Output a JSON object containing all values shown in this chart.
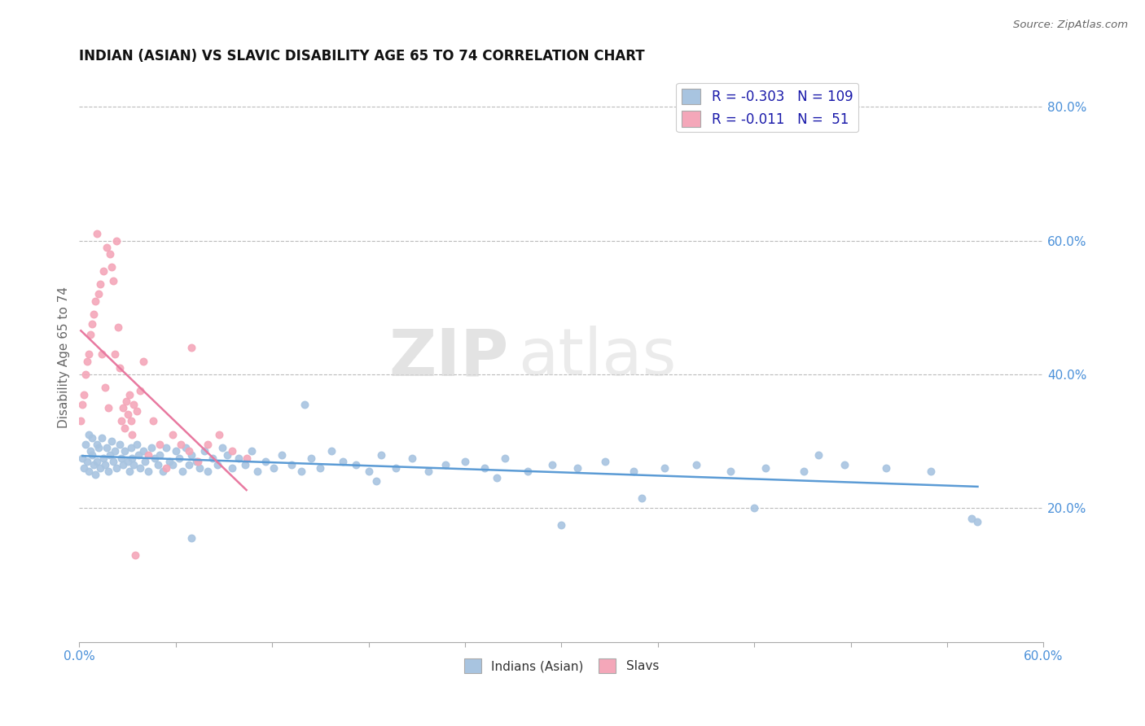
{
  "title": "INDIAN (ASIAN) VS SLAVIC DISABILITY AGE 65 TO 74 CORRELATION CHART",
  "source": "Source: ZipAtlas.com",
  "ylabel": "Disability Age 65 to 74",
  "xlim": [
    0.0,
    0.6
  ],
  "ylim": [
    0.0,
    0.85
  ],
  "xticks": [
    0.0,
    0.06,
    0.12,
    0.18,
    0.24,
    0.3,
    0.36,
    0.42,
    0.48,
    0.54,
    0.6
  ],
  "xticklabels": [
    "0.0%",
    "",
    "",
    "",
    "",
    "",
    "",
    "",
    "",
    "",
    "60.0%"
  ],
  "yticks_right": [
    0.2,
    0.4,
    0.6,
    0.8
  ],
  "ytick_right_labels": [
    "20.0%",
    "40.0%",
    "60.0%",
    "80.0%"
  ],
  "blue_color": "#a8c4e0",
  "pink_color": "#f4a7b9",
  "blue_line_color": "#5b9bd5",
  "pink_line_color": "#e879a0",
  "watermark_zip": "ZIP",
  "watermark_atlas": "atlas",
  "blue_x": [
    0.002,
    0.003,
    0.004,
    0.005,
    0.006,
    0.006,
    0.007,
    0.008,
    0.008,
    0.009,
    0.01,
    0.011,
    0.011,
    0.012,
    0.013,
    0.014,
    0.015,
    0.016,
    0.017,
    0.018,
    0.019,
    0.02,
    0.021,
    0.022,
    0.023,
    0.025,
    0.026,
    0.027,
    0.028,
    0.03,
    0.031,
    0.032,
    0.033,
    0.034,
    0.036,
    0.037,
    0.038,
    0.04,
    0.041,
    0.043,
    0.045,
    0.047,
    0.049,
    0.05,
    0.052,
    0.054,
    0.056,
    0.058,
    0.06,
    0.062,
    0.064,
    0.066,
    0.068,
    0.07,
    0.073,
    0.075,
    0.078,
    0.08,
    0.083,
    0.086,
    0.089,
    0.092,
    0.095,
    0.099,
    0.103,
    0.107,
    0.111,
    0.116,
    0.121,
    0.126,
    0.132,
    0.138,
    0.144,
    0.15,
    0.157,
    0.164,
    0.172,
    0.18,
    0.188,
    0.197,
    0.207,
    0.217,
    0.228,
    0.24,
    0.252,
    0.265,
    0.279,
    0.294,
    0.31,
    0.327,
    0.345,
    0.364,
    0.384,
    0.405,
    0.427,
    0.451,
    0.476,
    0.502,
    0.53,
    0.559,
    0.14,
    0.26,
    0.35,
    0.46,
    0.07,
    0.185,
    0.3,
    0.42,
    0.555
  ],
  "blue_y": [
    0.275,
    0.26,
    0.295,
    0.27,
    0.31,
    0.255,
    0.285,
    0.305,
    0.28,
    0.265,
    0.25,
    0.295,
    0.27,
    0.29,
    0.26,
    0.305,
    0.275,
    0.265,
    0.29,
    0.255,
    0.28,
    0.3,
    0.27,
    0.285,
    0.26,
    0.295,
    0.275,
    0.265,
    0.285,
    0.27,
    0.255,
    0.29,
    0.275,
    0.265,
    0.295,
    0.28,
    0.26,
    0.285,
    0.27,
    0.255,
    0.29,
    0.275,
    0.265,
    0.28,
    0.255,
    0.29,
    0.27,
    0.265,
    0.285,
    0.275,
    0.255,
    0.29,
    0.265,
    0.28,
    0.27,
    0.26,
    0.285,
    0.255,
    0.275,
    0.265,
    0.29,
    0.28,
    0.26,
    0.275,
    0.265,
    0.285,
    0.255,
    0.27,
    0.26,
    0.28,
    0.265,
    0.255,
    0.275,
    0.26,
    0.285,
    0.27,
    0.265,
    0.255,
    0.28,
    0.26,
    0.275,
    0.255,
    0.265,
    0.27,
    0.26,
    0.275,
    0.255,
    0.265,
    0.26,
    0.27,
    0.255,
    0.26,
    0.265,
    0.255,
    0.26,
    0.255,
    0.265,
    0.26,
    0.255,
    0.18,
    0.355,
    0.245,
    0.215,
    0.28,
    0.155,
    0.24,
    0.175,
    0.2,
    0.185
  ],
  "pink_x": [
    0.001,
    0.002,
    0.003,
    0.004,
    0.005,
    0.006,
    0.007,
    0.008,
    0.009,
    0.01,
    0.011,
    0.012,
    0.013,
    0.014,
    0.015,
    0.016,
    0.017,
    0.018,
    0.019,
    0.02,
    0.021,
    0.022,
    0.023,
    0.024,
    0.025,
    0.026,
    0.027,
    0.028,
    0.029,
    0.03,
    0.031,
    0.032,
    0.033,
    0.034,
    0.036,
    0.038,
    0.04,
    0.043,
    0.046,
    0.05,
    0.054,
    0.058,
    0.063,
    0.068,
    0.074,
    0.08,
    0.087,
    0.095,
    0.104,
    0.07,
    0.035
  ],
  "pink_y": [
    0.33,
    0.355,
    0.37,
    0.4,
    0.42,
    0.43,
    0.46,
    0.475,
    0.49,
    0.51,
    0.61,
    0.52,
    0.535,
    0.43,
    0.555,
    0.38,
    0.59,
    0.35,
    0.58,
    0.56,
    0.54,
    0.43,
    0.6,
    0.47,
    0.41,
    0.33,
    0.35,
    0.32,
    0.36,
    0.34,
    0.37,
    0.33,
    0.31,
    0.355,
    0.345,
    0.375,
    0.42,
    0.28,
    0.33,
    0.295,
    0.26,
    0.31,
    0.295,
    0.285,
    0.27,
    0.295,
    0.31,
    0.285,
    0.275,
    0.44,
    0.13
  ]
}
